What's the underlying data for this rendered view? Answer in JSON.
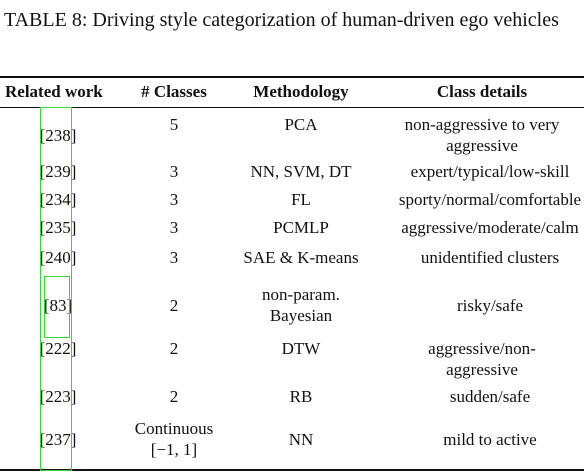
{
  "caption": "TABLE 8: Driving style categorization of human-driven ego vehicles",
  "headers": {
    "related_work": "Related work",
    "classes": "# Classes",
    "methodology": "Methodology",
    "class_details": "Class details"
  },
  "rows": [
    {
      "ref": "[238]",
      "classes": "5",
      "method": "PCA",
      "details": "non-aggressive to very aggressive"
    },
    {
      "ref": "[239]",
      "classes": "3",
      "method": "NN, SVM, DT",
      "details": "expert/typical/low-skill"
    },
    {
      "ref": "[234]",
      "classes": "3",
      "method": "FL",
      "details": "sporty/normal/comfortable"
    },
    {
      "ref": "[235]",
      "classes": "3",
      "method": "PCMLP",
      "details": "aggressive/moderate/calm"
    },
    {
      "ref": "[240]",
      "classes": "3",
      "method": "SAE & K-means",
      "details": "unidentified clusters"
    },
    {
      "ref": "[83]",
      "classes": "2",
      "method": "non-param. Bayesian",
      "details": "risky/safe"
    },
    {
      "ref": "[222]",
      "classes": "2",
      "method": "DTW",
      "details": "aggressive/non-aggressive"
    },
    {
      "ref": "[223]",
      "classes": "2",
      "method": "RB",
      "details": "sudden/safe"
    },
    {
      "ref": "[237]",
      "classes": "Continuous [−1, 1]",
      "method": "NN",
      "details": "mild to active"
    }
  ]
}
